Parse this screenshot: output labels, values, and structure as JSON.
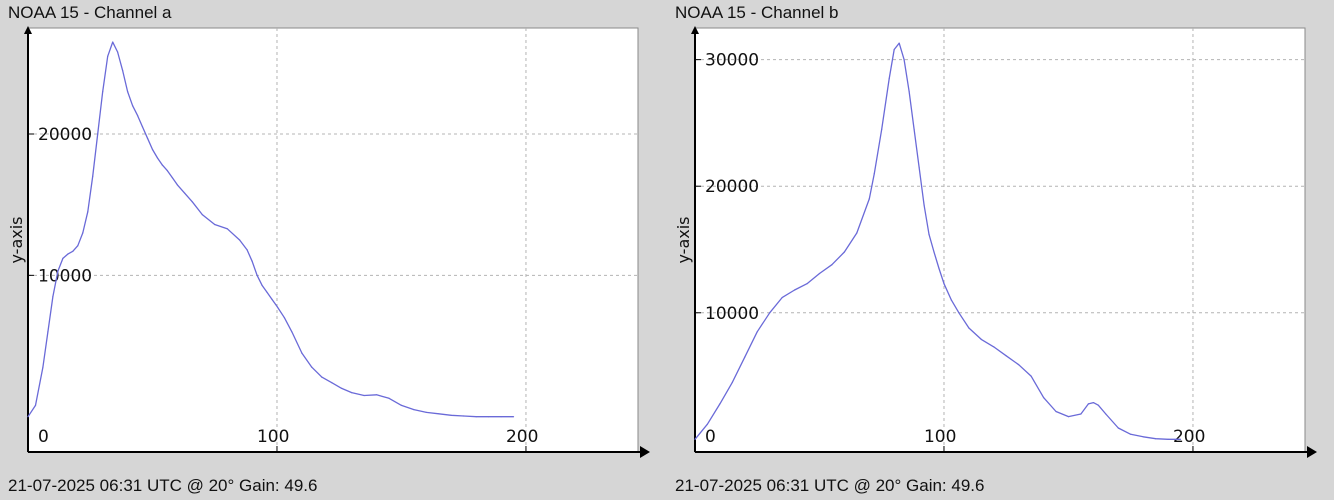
{
  "chart_data": [
    {
      "type": "line",
      "title": "NOAA 15 - Channel a",
      "footer": "21-07-2025 06:31 UTC @ 20° Gain: 49.6",
      "xlabel": "",
      "ylabel": "y-axis",
      "xlim": [
        0,
        245
      ],
      "ylim": [
        -2500,
        27500
      ],
      "xticks": [
        0,
        100,
        200
      ],
      "yticks": [
        10000,
        20000
      ],
      "xgrid": [
        100,
        200
      ],
      "ygrid": [
        10000,
        20000
      ],
      "colors": {
        "line": "#6a6ad8",
        "grid": "#b4b4b4",
        "axis": "#000000",
        "plot_bg": "#ffffff"
      },
      "series": [
        {
          "x": [
            0,
            3,
            6,
            8,
            10,
            12,
            14,
            16,
            18,
            20,
            22,
            24,
            26,
            28,
            30,
            32,
            34,
            36,
            38,
            40,
            42,
            44,
            46,
            48,
            50,
            52,
            54,
            56,
            58,
            60,
            63,
            66,
            70,
            75,
            80,
            85,
            88,
            90,
            92,
            94,
            96,
            98,
            100,
            103,
            106,
            110,
            114,
            118,
            122,
            126,
            130,
            135,
            140,
            145,
            150,
            155,
            160,
            165,
            170,
            175,
            180,
            185,
            190,
            195
          ],
          "y": [
            0,
            800,
            3500,
            6000,
            8500,
            10300,
            11200,
            11500,
            11700,
            12100,
            13000,
            14500,
            17000,
            20000,
            23000,
            25500,
            26500,
            25800,
            24500,
            23000,
            22000,
            21300,
            20500,
            19700,
            18900,
            18300,
            17800,
            17400,
            16900,
            16400,
            15800,
            15200,
            14300,
            13600,
            13300,
            12500,
            11800,
            11000,
            10000,
            9300,
            8800,
            8300,
            7800,
            7000,
            6000,
            4500,
            3500,
            2800,
            2400,
            2000,
            1700,
            1500,
            1550,
            1300,
            800,
            500,
            300,
            200,
            100,
            50,
            0,
            0,
            0,
            0
          ]
        }
      ]
    },
    {
      "type": "line",
      "title": "NOAA 15 - Channel b",
      "footer": "21-07-2025 06:31 UTC @ 20° Gain: 49.6",
      "xlabel": "",
      "ylabel": "y-axis",
      "xlim": [
        0,
        245
      ],
      "ylim": [
        -1000,
        32500
      ],
      "xticks": [
        0,
        100,
        200
      ],
      "yticks": [
        10000,
        20000,
        30000
      ],
      "xgrid": [
        100,
        200
      ],
      "ygrid": [
        10000,
        20000,
        30000
      ],
      "colors": {
        "line": "#6a6ad8",
        "grid": "#b4b4b4",
        "axis": "#000000",
        "plot_bg": "#ffffff"
      },
      "series": [
        {
          "x": [
            0,
            5,
            10,
            15,
            20,
            25,
            30,
            35,
            40,
            45,
            50,
            55,
            60,
            65,
            70,
            72,
            75,
            78,
            80,
            82,
            84,
            86,
            88,
            90,
            92,
            94,
            96,
            98,
            100,
            103,
            106,
            110,
            115,
            120,
            125,
            130,
            135,
            140,
            145,
            150,
            155,
            158,
            160,
            162,
            165,
            170,
            175,
            180,
            185,
            190,
            195
          ],
          "y": [
            0,
            1200,
            2800,
            4500,
            6500,
            8500,
            10000,
            11200,
            11800,
            12300,
            13100,
            13800,
            14800,
            16300,
            19000,
            21000,
            24500,
            28500,
            30800,
            31300,
            30000,
            27500,
            24500,
            21500,
            18500,
            16200,
            14800,
            13500,
            12300,
            11000,
            10000,
            8800,
            7900,
            7300,
            6600,
            5900,
            5000,
            3300,
            2200,
            1800,
            2000,
            2800,
            2900,
            2700,
            2000,
            900,
            400,
            200,
            50,
            0,
            0
          ]
        }
      ]
    }
  ]
}
